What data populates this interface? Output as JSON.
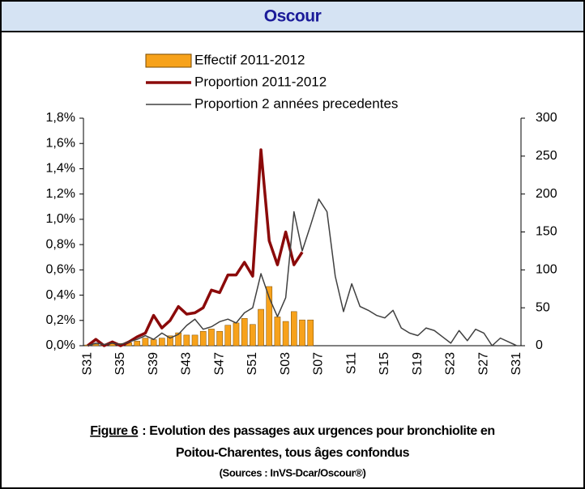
{
  "chart_data": {
    "type": "combo",
    "title": "Oscour",
    "categories": [
      "S31",
      null,
      null,
      null,
      "S35",
      null,
      null,
      null,
      "S39",
      null,
      null,
      null,
      "S43",
      null,
      null,
      null,
      "S47",
      null,
      null,
      null,
      "S51",
      null,
      null,
      null,
      "S03",
      null,
      null,
      null,
      "S07",
      null,
      null,
      null,
      "S11",
      null,
      null,
      null,
      "S15",
      null,
      null,
      null,
      "S19",
      null,
      null,
      null,
      "S23",
      null,
      null,
      null,
      "S27",
      null,
      null,
      null,
      "S31"
    ],
    "series": [
      {
        "name": "Effectif 2011-2012",
        "type": "bar",
        "axis": "y2",
        "color": "#f7a21b",
        "values": [
          1,
          2,
          2,
          3,
          3,
          4,
          6,
          10,
          8,
          10,
          13,
          17,
          14,
          14,
          19,
          22,
          19,
          27,
          30,
          36,
          28,
          48,
          78,
          38,
          32,
          45,
          34,
          34,
          null,
          null,
          null,
          null,
          null,
          null,
          null,
          null,
          null,
          null,
          null,
          null,
          null,
          null,
          null,
          null,
          null,
          null,
          null,
          null,
          null,
          null,
          null,
          null,
          null
        ]
      },
      {
        "name": "Proportion 2011-2012",
        "type": "line",
        "color": "#8b0a0a",
        "values": [
          0.0,
          0.05,
          0.0,
          0.03,
          0.0,
          0.03,
          0.07,
          0.1,
          0.24,
          0.14,
          0.2,
          0.31,
          0.25,
          0.26,
          0.3,
          0.44,
          0.42,
          0.56,
          0.56,
          0.66,
          0.55,
          1.55,
          0.83,
          0.64,
          0.9,
          0.64,
          0.74,
          null,
          null,
          null,
          null,
          null,
          null,
          null,
          null,
          null,
          null,
          null,
          null,
          null,
          null,
          null,
          null,
          null,
          null,
          null,
          null,
          null,
          null,
          null,
          null,
          null,
          null
        ]
      },
      {
        "name": "Proportion 2 années precedentes",
        "type": "line",
        "color": "#404040",
        "values": [
          0.0,
          0.02,
          0.01,
          0.02,
          0.01,
          0.03,
          0.05,
          0.08,
          0.05,
          0.1,
          0.06,
          0.09,
          0.16,
          0.21,
          0.13,
          0.15,
          0.19,
          0.21,
          0.18,
          0.26,
          0.3,
          0.57,
          0.38,
          0.23,
          0.38,
          1.06,
          0.75,
          0.95,
          1.16,
          1.06,
          0.55,
          0.27,
          0.49,
          0.31,
          0.28,
          0.24,
          0.22,
          0.28,
          0.14,
          0.1,
          0.08,
          0.14,
          0.12,
          0.07,
          0.02,
          0.12,
          0.04,
          0.13,
          0.1,
          0.0,
          0.06,
          0.03,
          0.0
        ]
      }
    ],
    "ylim": [
      0,
      1.8
    ],
    "yticks": [
      {
        "value": 0,
        "label": "0,0%"
      },
      {
        "value": 0.2,
        "label": "0,2%"
      },
      {
        "value": 0.4,
        "label": "0,4%"
      },
      {
        "value": 0.6,
        "label": "0,6%"
      },
      {
        "value": 0.8,
        "label": "0,8%"
      },
      {
        "value": 1.0,
        "label": "1,0%"
      },
      {
        "value": 1.2,
        "label": "1,2%"
      },
      {
        "value": 1.4,
        "label": "1,4%"
      },
      {
        "value": 1.6,
        "label": "1,6%"
      },
      {
        "value": 1.8,
        "label": "1,8%"
      }
    ],
    "y2lim": [
      0,
      300
    ],
    "y2ticks": [
      0,
      50,
      100,
      150,
      200,
      250,
      300
    ],
    "legend": "top",
    "caption": {
      "figure": "Figure 6",
      "line1": ": Evolution des passages aux urgences pour bronchiolite en",
      "line2": "Poitou-Charentes, tous âges confondus",
      "sources": "(Sources : InVS-Dcar/Oscour®)"
    }
  }
}
